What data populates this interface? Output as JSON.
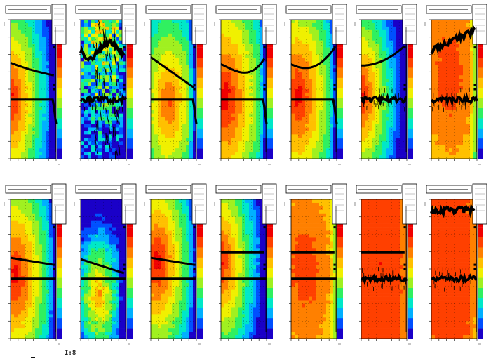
{
  "figure": {
    "background": "#ffffff",
    "footer_label": "I:8",
    "colormap": [
      "#1a00c8",
      "#0050ff",
      "#00b0ff",
      "#00e8c8",
      "#30f060",
      "#a0f020",
      "#f0f000",
      "#ffc000",
      "#ff8000",
      "#ff4000",
      "#f00000"
    ]
  },
  "chart_data": [
    {
      "type": "heatmap",
      "panel": "r1c1",
      "stats_box": true,
      "band_upper": "smooth-descending",
      "band_lower": "flat",
      "colorbar": true
    },
    {
      "type": "heatmap",
      "panel": "r1c2",
      "stats_box": true,
      "band_upper": "noisy",
      "band_lower": "noisy",
      "colorbar": true
    },
    {
      "type": "heatmap",
      "panel": "r1c3",
      "stats_box": true,
      "band_upper": "steep-descending",
      "band_lower": "flat",
      "colorbar": true
    },
    {
      "type": "heatmap",
      "panel": "r1c4",
      "stats_box": true,
      "band_upper": "descending-then-rising",
      "band_lower": "flat",
      "colorbar": true
    },
    {
      "type": "heatmap",
      "panel": "r1c5",
      "stats_box": true,
      "band_upper": "dip-then-rising",
      "band_lower": "flat",
      "colorbar": true
    },
    {
      "type": "heatmap",
      "panel": "r1c6",
      "stats_box": true,
      "band_upper": "rising",
      "band_lower": "flat-noisy",
      "colorbar": true
    },
    {
      "type": "heatmap",
      "panel": "r1c7",
      "stats_box": true,
      "band_upper": "rising-noisy",
      "band_lower": "noisy",
      "colorbar": true
    },
    {
      "type": "heatmap",
      "panel": "r2c1",
      "stats_box": true,
      "band_upper": "slight-descending",
      "band_lower": "flat",
      "colorbar": true
    },
    {
      "type": "heatmap",
      "panel": "r2c2",
      "stats_box": true,
      "band_upper": "descending",
      "band_lower": "flat",
      "colorbar": true
    },
    {
      "type": "heatmap",
      "panel": "r2c3",
      "stats_box": true,
      "band_upper": "slight-descending",
      "band_lower": "flat",
      "colorbar": true
    },
    {
      "type": "heatmap",
      "panel": "r2c4",
      "stats_box": true,
      "band_upper": "flat",
      "band_lower": "flat",
      "colorbar": true
    },
    {
      "type": "heatmap",
      "panel": "r2c5",
      "stats_box": true,
      "band_upper": "flat",
      "band_lower": "flat",
      "colorbar": true
    },
    {
      "type": "heatmap",
      "panel": "r2c6",
      "stats_box": true,
      "band_upper": "flat",
      "band_lower": "flat-noisy",
      "colorbar": true
    },
    {
      "type": "heatmap",
      "panel": "r2c7",
      "stats_box": true,
      "band_upper": "flat-noisy",
      "band_lower": "flat-noisy",
      "colorbar": true
    }
  ]
}
